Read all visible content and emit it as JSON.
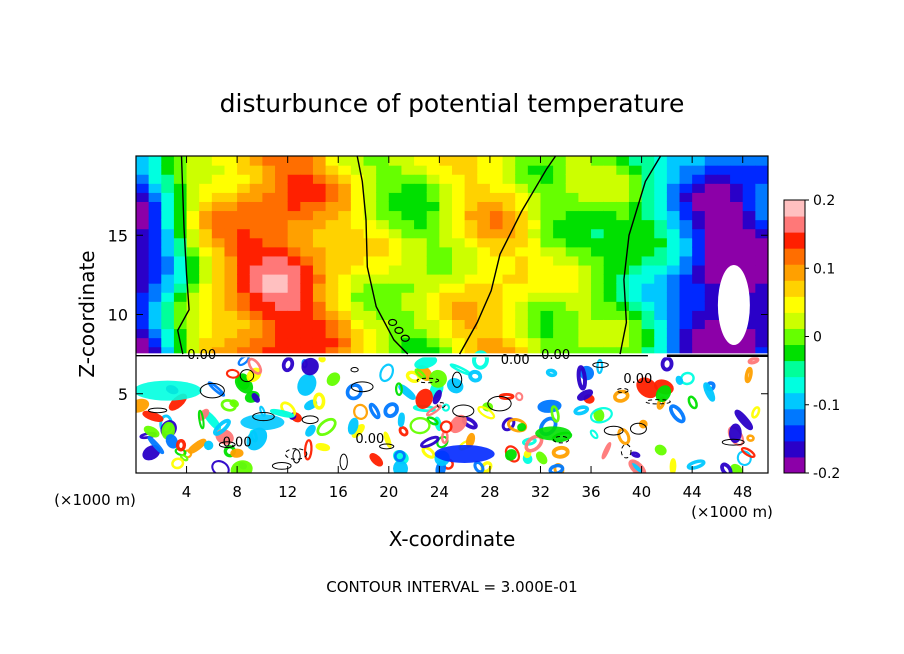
{
  "chart_data": {
    "type": "heatmap",
    "title": "disturbunce of potential temperature",
    "xlabel": "X-coordinate",
    "ylabel": "Z-coordinate",
    "x_unit": "(×1000 m)",
    "x_unit_right": "(×1000 m)",
    "xlim": [
      0,
      50
    ],
    "ylim": [
      0,
      20
    ],
    "x_ticks": [
      4,
      8,
      12,
      16,
      20,
      24,
      28,
      32,
      36,
      40,
      44,
      48
    ],
    "y_ticks": [
      5,
      10,
      15
    ],
    "colorbar": {
      "range": [
        -0.2,
        0.2
      ],
      "tick_values": [
        0.2,
        0.1,
        0,
        -0.1,
        -0.2
      ],
      "tick_labels": [
        "0.2",
        "0.1",
        "0",
        "-0.1",
        "-0.2"
      ],
      "colors": [
        "#8c00a8",
        "#2a00c8",
        "#0028ff",
        "#0078ff",
        "#00c8ff",
        "#00ffe0",
        "#00ff9a",
        "#00e000",
        "#66ff00",
        "#ccff00",
        "#ffff00",
        "#ffd200",
        "#ffa000",
        "#ff6e00",
        "#ff2000",
        "#ff7878",
        "#ffc0c0"
      ]
    },
    "contour_labels": [
      "0.00",
      "0.00",
      "0.00",
      "0.00",
      "0.00",
      "0.00"
    ],
    "footer": "CONTOUR INTERVAL = 3.000E-01",
    "upper_layer": {
      "columns_x": [
        0,
        1,
        2,
        3,
        4,
        5,
        6,
        7,
        8,
        9,
        10,
        11,
        12,
        13,
        14,
        15,
        16,
        17,
        18,
        19,
        20,
        21,
        22,
        23,
        24,
        25,
        26,
        27,
        28,
        29,
        30,
        31,
        32,
        33,
        34,
        35,
        36,
        37,
        38,
        39,
        40,
        41,
        42,
        43,
        44,
        45,
        46,
        47,
        48,
        49,
        50
      ],
      "values": [
        -0.18,
        -0.15,
        -0.11,
        -0.06,
        -0.01,
        0.04,
        0.07,
        0.09,
        0.11,
        0.13,
        0.14,
        0.15,
        0.15,
        0.14,
        0.12,
        0.1,
        0.08,
        0.06,
        0.04,
        0.03,
        0.02,
        0.01,
        0.0,
        0.01,
        0.02,
        0.04,
        0.06,
        0.07,
        0.08,
        0.07,
        0.06,
        0.04,
        0.02,
        0.01,
        0.01,
        0.01,
        0.0,
        -0.01,
        -0.01,
        -0.02,
        -0.04,
        -0.06,
        -0.09,
        -0.12,
        -0.15,
        -0.18,
        -0.2,
        -0.2,
        -0.2,
        -0.18,
        -0.16
      ]
    }
  }
}
